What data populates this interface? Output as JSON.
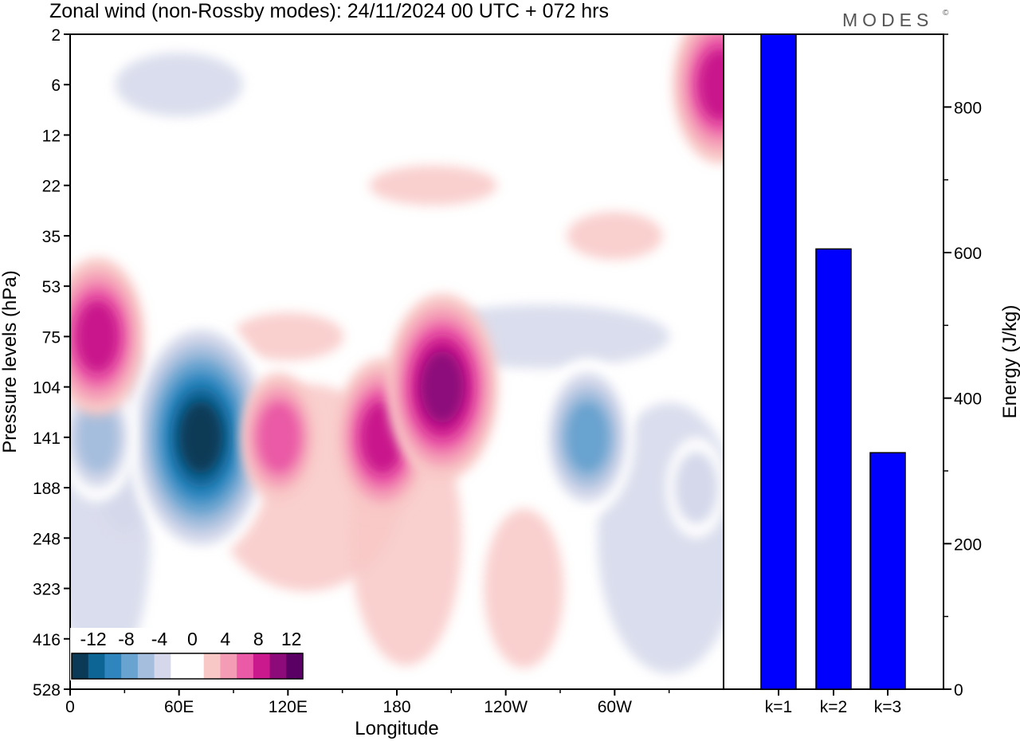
{
  "title": "Zonal wind (non-Rossby modes):  24/11/2024  00 UTC  + 072 hrs",
  "logo": "MODES",
  "logo_mark": "©",
  "chart_data": [
    {
      "type": "heatmap",
      "xlabel": "Longitude",
      "ylabel": "Pressure levels (hPa)",
      "x_ticks": [
        "0",
        "60E",
        "120E",
        "180",
        "120W",
        "60W"
      ],
      "y_ticks": [
        "2",
        "6",
        "12",
        "22",
        "35",
        "53",
        "75",
        "104",
        "141",
        "188",
        "248",
        "323",
        "416",
        "528"
      ],
      "colorbar": {
        "tick_labels": [
          "-12",
          "-8",
          "-4",
          "0",
          "4",
          "8",
          "12"
        ],
        "colors": [
          "#0b3a57",
          "#0d6596",
          "#2f86bf",
          "#69a3cf",
          "#a6bedd",
          "#d4d8ea",
          "#ffffff",
          "#ffffff",
          "#f8c8c6",
          "#f49bb6",
          "#ea5aa6",
          "#c9198c",
          "#8d0a7b",
          "#5a0064"
        ]
      },
      "features": [
        {
          "lon": 72,
          "level": "141",
          "value": -14
        },
        {
          "lon": 15,
          "level": "141",
          "value": -6
        },
        {
          "lon": 15,
          "level": "75",
          "value": 9
        },
        {
          "lon": 172,
          "level": "141",
          "value": 9
        },
        {
          "lon": 205,
          "level": "104",
          "value": 10
        },
        {
          "lon": 115,
          "level": "141",
          "value": 6
        },
        {
          "lon": 285,
          "level": "141",
          "value": -8
        },
        {
          "lon": 345,
          "level": "188",
          "value": -5
        },
        {
          "lon": 358,
          "level": "6",
          "value": 8
        }
      ]
    },
    {
      "type": "bar",
      "categories": [
        "k=1",
        "k=2",
        "k=3"
      ],
      "values": [
        900,
        605,
        325
      ],
      "ylabel": "Energy (J/kg)",
      "ylim": [
        0,
        900
      ],
      "y_ticks": [
        "0",
        "200",
        "400",
        "600",
        "800"
      ],
      "bar_color": "#0000ff"
    }
  ]
}
